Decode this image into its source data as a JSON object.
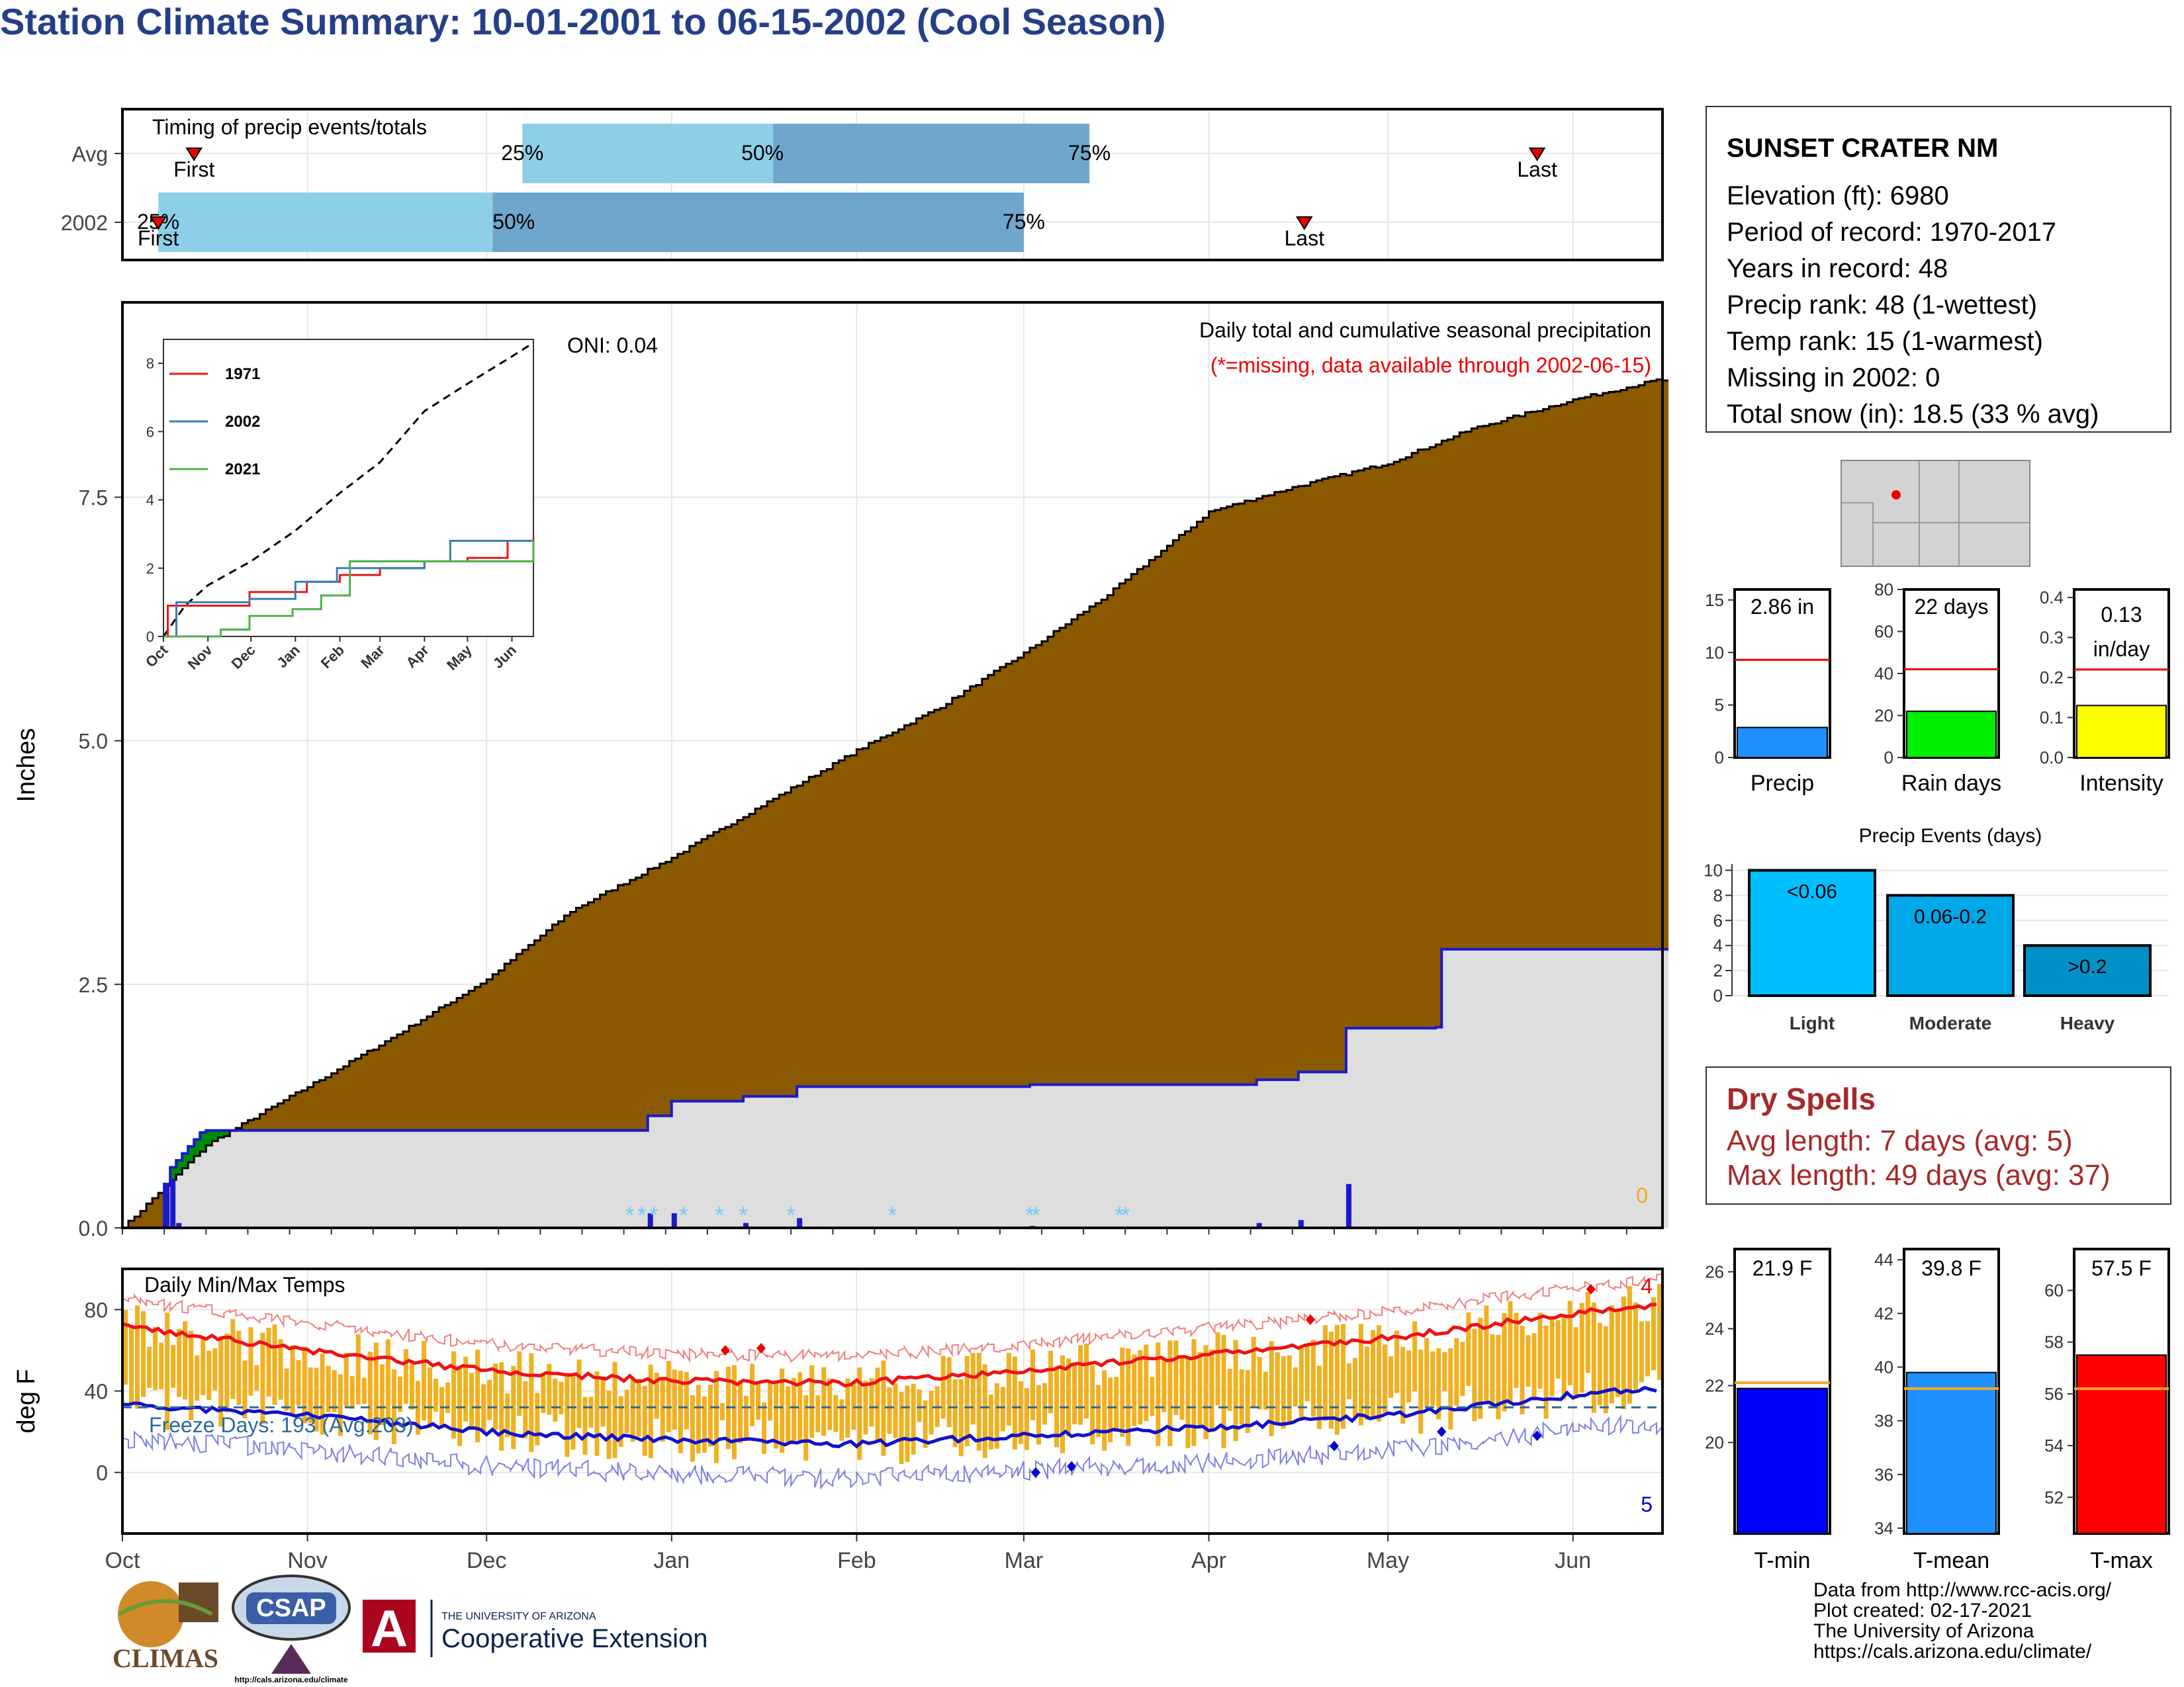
{
  "title": "Station Climate Summary: 10-01-2001 to 06-15-2002 (Cool Season)",
  "colors": {
    "title": "#253f87",
    "cumulative_fill": "#8b5a00",
    "early_surplus_fill": "#008c00",
    "avg_fill": "#dedede",
    "avg_line": "#1a1acc",
    "timing_light": "#8ecfe8",
    "timing_dark": "#6fa6cc",
    "tmax": "#ee1111",
    "tmin": "#1111cc",
    "range_bars": "#f0b020",
    "dry_spells": "#a52a2a"
  },
  "timing": {
    "title": "Timing of precip events/totals",
    "rows": [
      {
        "label": "Avg",
        "first": "First",
        "last": "Last",
        "p25": "25%",
        "p50": "50%",
        "p75": "75%",
        "first_day": 12,
        "p25_day": 67,
        "p50_day": 109,
        "p75_day": 162,
        "last_day": 237
      },
      {
        "label": "2002",
        "first": "First",
        "last": "Last",
        "p25": "25%",
        "p50": "50%",
        "p75": "75%",
        "first_day": 6,
        "p25_day": 6,
        "p50_day": 62,
        "p75_day": 151,
        "last_day": 198
      }
    ]
  },
  "precip_panel": {
    "ylabel": "Inches",
    "yticks": [
      "0.0",
      "2.5",
      "5.0",
      "7.5"
    ],
    "caption": "Daily total and cumulative seasonal precipitation",
    "missing_note": "(*=missing, data available through 2002-06-15)",
    "oni": "ONI: 0.04",
    "missing_count": "0"
  },
  "inset": {
    "yticks": [
      "0",
      "2",
      "4",
      "6",
      "8"
    ],
    "xticks": [
      "Oct",
      "Nov",
      "Dec",
      "Jan",
      "Feb",
      "Mar",
      "Apr",
      "May",
      "Jun"
    ],
    "legend": [
      "1971",
      "2002",
      "2021"
    ]
  },
  "temp_panel": {
    "title": "Daily Min/Max Temps",
    "ylabel": "deg F",
    "yticks": [
      "0",
      "40",
      "80"
    ],
    "freeze_days": "Freeze Days: 193 (Avg:203)",
    "tmax_records": "4",
    "tmin_records": "5"
  },
  "months": [
    "Oct",
    "Nov",
    "Dec",
    "Jan",
    "Feb",
    "Mar",
    "Apr",
    "May",
    "Jun"
  ],
  "station": {
    "name": "SUNSET CRATER NM",
    "lines": [
      "Elevation (ft): 6980",
      "Period of record: 1970-2017",
      "Years in record: 48",
      "Precip rank: 48 (1-wettest)",
      "Temp rank: 15 (1-warmest)",
      "Missing in 2002: 0",
      "Total snow (in): 18.5 (33 % avg)"
    ]
  },
  "mini_bars": [
    {
      "label": "Precip",
      "value_text": "2.86 in",
      "ticks": [
        "0",
        "5",
        "10",
        "15"
      ],
      "value": 2.86,
      "avg": 9.3,
      "ymax": 16,
      "color": "#1e90ff"
    },
    {
      "label": "Rain days",
      "value_text": "22 days",
      "ticks": [
        "0",
        "20",
        "40",
        "60",
        "80"
      ],
      "value": 22,
      "avg": 42,
      "ymax": 80,
      "color": "#00ee00"
    },
    {
      "label": "Intensity",
      "value_text": "0.13 in/day",
      "ticks": [
        "0.0",
        "0.1",
        "0.2",
        "0.3",
        "0.4"
      ],
      "value": 0.13,
      "avg": 0.22,
      "ymax": 0.42,
      "color": "#ffff00"
    }
  ],
  "events": {
    "title": "Precip Events (days)",
    "yticks": [
      "0",
      "2",
      "4",
      "6",
      "8",
      "10"
    ],
    "categories": [
      "Light",
      "Moderate",
      "Heavy"
    ],
    "bar_labels": [
      "<0.06",
      "0.06-0.2",
      ">0.2"
    ],
    "values": [
      10,
      8,
      4
    ],
    "colors": [
      "#00bfff",
      "#00a8e8",
      "#0090c8"
    ]
  },
  "dry_spells": {
    "title": "Dry Spells",
    "avg_length": "Avg length: 7 days (avg: 5)",
    "max_length": "Max length: 49 days (avg: 37)"
  },
  "temp_bars": [
    {
      "label": "T-min",
      "value_text": "21.9 F",
      "ticks": [
        "20",
        "22",
        "24",
        "26"
      ],
      "value": 21.9,
      "avg": 22.1,
      "ymin": 16.8,
      "ymax": 26.8,
      "color": "#0000ff"
    },
    {
      "label": "T-mean",
      "value_text": "39.8 F",
      "ticks": [
        "34",
        "36",
        "38",
        "40",
        "42",
        "44"
      ],
      "value": 39.8,
      "avg": 39.2,
      "ymin": 33.8,
      "ymax": 44.4,
      "color": "#1e90ff"
    },
    {
      "label": "T-max",
      "value_text": "57.5 F",
      "ticks": [
        "52",
        "54",
        "56",
        "58",
        "60"
      ],
      "value": 57.5,
      "avg": 56.2,
      "ymin": 50.6,
      "ymax": 61.6,
      "color": "#ff0000"
    }
  ],
  "credits": [
    "Data from http://www.rcc-acis.org/",
    "Plot created: 02-17-2021",
    "The University of Arizona",
    "https://cals.arizona.edu/climate/"
  ],
  "logos": {
    "climas": "CLIMAS",
    "csap": "CSAP",
    "csap_url": "http://cals.arizona.edu/climate",
    "ua_small": "THE UNIVERSITY OF ARIZONA",
    "ua_ext": "Cooperative Extension"
  },
  "chart_data": [
    {
      "type": "area",
      "title": "Daily total and cumulative seasonal precipitation",
      "ylabel": "Inches",
      "ylim": [
        0,
        9.5
      ],
      "x": [
        "2001-10-01",
        "2001-10-15",
        "2001-11-01",
        "2001-11-15",
        "2001-12-01",
        "2001-12-15",
        "2002-01-01",
        "2002-01-15",
        "2002-02-01",
        "2002-02-15",
        "2002-03-01",
        "2002-03-15",
        "2002-04-01",
        "2002-04-15",
        "2002-05-01",
        "2002-05-15",
        "2002-06-01",
        "2002-06-15"
      ],
      "series": [
        {
          "name": "Average cumulative",
          "values": [
            0.0,
            0.85,
            1.45,
            1.95,
            2.55,
            3.25,
            3.8,
            4.3,
            4.9,
            5.35,
            5.9,
            6.5,
            7.35,
            7.6,
            7.85,
            8.2,
            8.5,
            8.7
          ]
        },
        {
          "name": "2002 cumulative",
          "values": [
            0.0,
            1.0,
            1.0,
            1.0,
            1.3,
            1.65,
            2.0,
            2.0,
            2.1,
            2.1,
            2.15,
            2.3,
            2.45,
            2.85,
            2.86,
            2.86,
            2.86,
            2.86
          ]
        }
      ]
    },
    {
      "type": "line",
      "title": "Daily Min/Max Temps",
      "ylabel": "deg F",
      "ylim": [
        -30,
        100
      ],
      "x": [
        "2001-10-01",
        "2001-11-01",
        "2001-12-01",
        "2002-01-01",
        "2002-02-01",
        "2002-03-01",
        "2002-04-01",
        "2002-05-01",
        "2002-06-01",
        "2002-06-15"
      ],
      "series": [
        {
          "name": "Avg Tmax",
          "values": [
            72,
            60,
            50,
            45,
            44,
            50,
            58,
            66,
            78,
            82
          ]
        },
        {
          "name": "Avg Tmin",
          "values": [
            33,
            28,
            20,
            16,
            14,
            18,
            22,
            28,
            38,
            41
          ]
        }
      ]
    }
  ]
}
